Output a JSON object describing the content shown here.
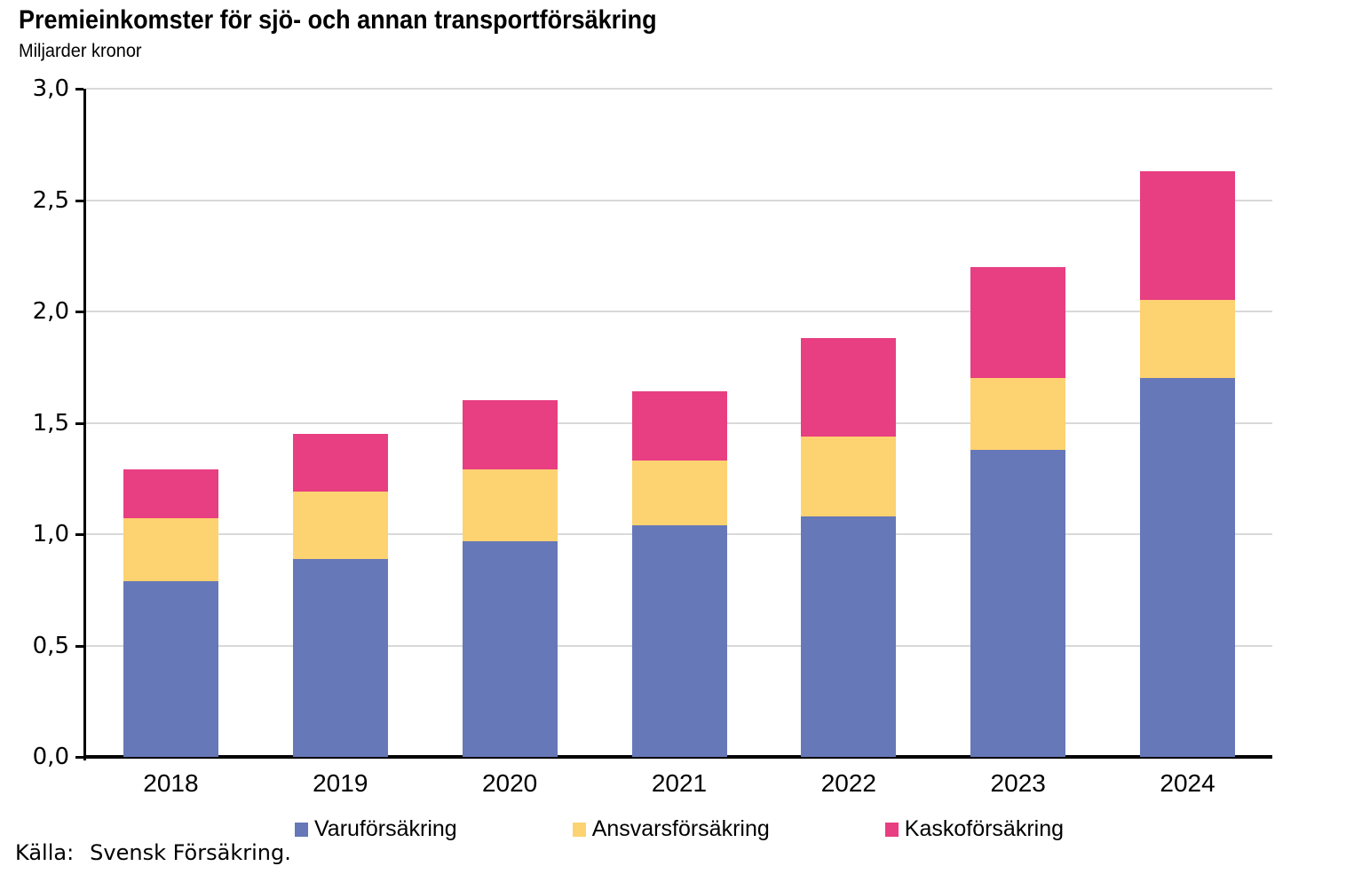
{
  "chart_data": {
    "type": "bar",
    "stacked": true,
    "title": "Premieinkomster för sjö- och annan transportförsäkring",
    "unit_label": "Miljarder kronor",
    "categories": [
      "2018",
      "2019",
      "2020",
      "2021",
      "2022",
      "2023",
      "2024"
    ],
    "series": [
      {
        "name": "Varuförsäkring",
        "color": "#6678b8",
        "values": [
          0.79,
          0.89,
          0.97,
          1.04,
          1.08,
          1.38,
          1.7
        ]
      },
      {
        "name": "Ansvarsförsäkring",
        "color": "#fdd271",
        "values": [
          0.28,
          0.3,
          0.32,
          0.29,
          0.36,
          0.32,
          0.35
        ]
      },
      {
        "name": "Kaskoförsäkring",
        "color": "#e83e82",
        "values": [
          0.22,
          0.26,
          0.31,
          0.31,
          0.44,
          0.5,
          0.58
        ]
      }
    ],
    "totals": [
      1.29,
      1.45,
      1.6,
      1.64,
      1.88,
      2.2,
      2.63
    ],
    "ylim": [
      0,
      3
    ],
    "yticks": [
      0,
      0.5,
      1,
      1.5,
      2,
      2.5,
      3
    ],
    "ytick_labels": [
      "0,0",
      "0,5",
      "1,0",
      "1,5",
      "2,0",
      "2,5",
      "3,0"
    ],
    "grid": true,
    "legend_position": "bottom",
    "colors": {
      "axis": "#000000",
      "gridline": "#d9d9d9",
      "background": "#ffffff"
    }
  },
  "source": {
    "label": "Källa:",
    "text": "Svensk Försäkring."
  }
}
